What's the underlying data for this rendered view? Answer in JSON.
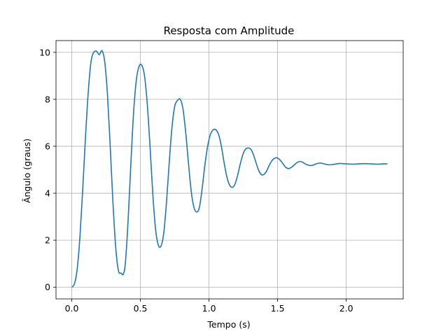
{
  "chart_data": {
    "type": "line",
    "title": "Resposta com Amplitude",
    "xlabel": "Tempo (s)",
    "ylabel": "Ângulo (graus)",
    "xlim": [
      -0.115,
      2.415
    ],
    "ylim": [
      -0.5,
      10.5
    ],
    "xticks": [
      0.0,
      0.5,
      1.0,
      1.5,
      2.0
    ],
    "xtick_labels": [
      "0.0",
      "0.5",
      "1.0",
      "1.5",
      "2.0"
    ],
    "yticks": [
      0,
      2,
      4,
      6,
      8,
      10
    ],
    "ytick_labels": [
      "0",
      "2",
      "4",
      "6",
      "8",
      "10"
    ],
    "grid": true,
    "line_color": "#1f77b4",
    "series": [
      {
        "x": [
          0.0,
          0.02,
          0.04,
          0.06,
          0.08,
          0.1,
          0.12,
          0.14,
          0.16,
          0.18,
          0.2,
          0.22,
          0.24,
          0.26,
          0.28,
          0.3,
          0.32,
          0.34,
          0.36,
          0.375,
          0.39,
          0.41,
          0.43,
          0.45,
          0.47,
          0.49,
          0.51,
          0.53,
          0.55,
          0.57,
          0.59,
          0.61,
          0.63,
          0.65,
          0.67,
          0.69,
          0.71,
          0.73,
          0.75,
          0.77,
          0.79,
          0.81,
          0.83,
          0.85,
          0.87,
          0.89,
          0.91,
          0.93,
          0.95,
          0.97,
          0.99,
          1.01,
          1.03,
          1.05,
          1.07,
          1.09,
          1.11,
          1.13,
          1.15,
          1.17,
          1.19,
          1.21,
          1.23,
          1.25,
          1.27,
          1.3,
          1.32,
          1.34,
          1.36,
          1.38,
          1.4,
          1.42,
          1.44,
          1.46,
          1.48,
          1.5,
          1.52,
          1.54,
          1.56,
          1.58,
          1.6,
          1.62,
          1.64,
          1.66,
          1.68,
          1.7,
          1.72,
          1.74,
          1.76,
          1.78,
          1.8,
          1.82,
          1.84,
          1.86,
          1.88,
          1.9,
          1.92,
          1.94,
          1.96,
          1.98,
          2.0,
          2.03,
          2.06,
          2.09,
          2.12,
          2.15,
          2.18,
          2.21,
          2.24,
          2.27,
          2.3
        ],
        "y": [
          0.0,
          0.15,
          0.8,
          2.2,
          4.2,
          6.4,
          8.3,
          9.6,
          10.0,
          10.05,
          9.9,
          10.07,
          9.6,
          8.2,
          6.0,
          3.6,
          1.7,
          0.7,
          0.6,
          0.55,
          1.0,
          2.8,
          5.2,
          7.4,
          8.8,
          9.4,
          9.45,
          9.0,
          7.8,
          6.0,
          4.0,
          2.5,
          1.8,
          1.75,
          2.3,
          3.6,
          5.3,
          6.8,
          7.7,
          7.95,
          8.0,
          7.6,
          6.6,
          5.3,
          4.1,
          3.4,
          3.2,
          3.4,
          4.2,
          5.2,
          6.0,
          6.5,
          6.7,
          6.7,
          6.5,
          6.0,
          5.3,
          4.7,
          4.35,
          4.25,
          4.4,
          4.8,
          5.3,
          5.7,
          5.9,
          5.9,
          5.7,
          5.35,
          5.0,
          4.8,
          4.8,
          4.95,
          5.2,
          5.4,
          5.5,
          5.5,
          5.4,
          5.25,
          5.1,
          5.05,
          5.1,
          5.2,
          5.3,
          5.35,
          5.33,
          5.25,
          5.2,
          5.18,
          5.2,
          5.25,
          5.28,
          5.28,
          5.25,
          5.22,
          5.21,
          5.22,
          5.24,
          5.26,
          5.27,
          5.26,
          5.25,
          5.24,
          5.24,
          5.25,
          5.26,
          5.26,
          5.25,
          5.24,
          5.24,
          5.25,
          5.25
        ]
      }
    ]
  }
}
